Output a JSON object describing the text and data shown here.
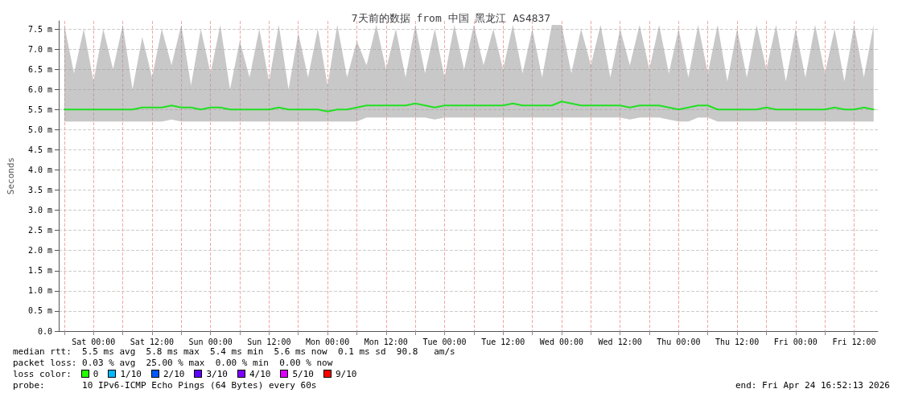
{
  "chart_data": {
    "type": "line",
    "title": "7天前的数据 from 中国 黑龙江 AS4837",
    "ylabel": "Seconds",
    "x": [
      "2026-04-17T18:00",
      "2026-04-17T20:00",
      "2026-04-17T22:00",
      "2026-04-18T00:00",
      "2026-04-18T02:00",
      "2026-04-18T04:00",
      "2026-04-18T06:00",
      "2026-04-18T08:00",
      "2026-04-18T10:00",
      "2026-04-18T12:00",
      "2026-04-18T14:00",
      "2026-04-18T16:00",
      "2026-04-18T18:00",
      "2026-04-18T20:00",
      "2026-04-18T22:00",
      "2026-04-19T00:00",
      "2026-04-19T02:00",
      "2026-04-19T04:00",
      "2026-04-19T06:00",
      "2026-04-19T08:00",
      "2026-04-19T10:00",
      "2026-04-19T12:00",
      "2026-04-19T14:00",
      "2026-04-19T16:00",
      "2026-04-19T18:00",
      "2026-04-19T20:00",
      "2026-04-19T22:00",
      "2026-04-20T00:00",
      "2026-04-20T02:00",
      "2026-04-20T04:00",
      "2026-04-20T06:00",
      "2026-04-20T08:00",
      "2026-04-20T10:00",
      "2026-04-20T12:00",
      "2026-04-20T14:00",
      "2026-04-20T16:00",
      "2026-04-20T18:00",
      "2026-04-20T20:00",
      "2026-04-20T22:00",
      "2026-04-21T00:00",
      "2026-04-21T02:00",
      "2026-04-21T04:00",
      "2026-04-21T06:00",
      "2026-04-21T08:00",
      "2026-04-21T10:00",
      "2026-04-21T12:00",
      "2026-04-21T14:00",
      "2026-04-21T16:00",
      "2026-04-21T18:00",
      "2026-04-21T20:00",
      "2026-04-21T22:00",
      "2026-04-22T00:00",
      "2026-04-22T02:00",
      "2026-04-22T04:00",
      "2026-04-22T06:00",
      "2026-04-22T08:00",
      "2026-04-22T10:00",
      "2026-04-22T12:00",
      "2026-04-22T14:00",
      "2026-04-22T16:00",
      "2026-04-22T18:00",
      "2026-04-22T20:00",
      "2026-04-22T22:00",
      "2026-04-23T00:00",
      "2026-04-23T02:00",
      "2026-04-23T04:00",
      "2026-04-23T06:00",
      "2026-04-23T08:00",
      "2026-04-23T10:00",
      "2026-04-23T12:00",
      "2026-04-23T14:00",
      "2026-04-23T16:00",
      "2026-04-23T18:00",
      "2026-04-23T20:00",
      "2026-04-23T22:00",
      "2026-04-24T00:00",
      "2026-04-24T02:00",
      "2026-04-24T04:00",
      "2026-04-24T06:00",
      "2026-04-24T08:00",
      "2026-04-24T10:00",
      "2026-04-24T12:00",
      "2026-04-24T14:00",
      "2026-04-24T16:00"
    ],
    "series": [
      {
        "color": "#22e022",
        "values": [
          5.5,
          5.5,
          5.5,
          5.5,
          5.5,
          5.5,
          5.5,
          5.5,
          5.55,
          5.55,
          5.55,
          5.6,
          5.55,
          5.55,
          5.5,
          5.55,
          5.55,
          5.5,
          5.5,
          5.5,
          5.5,
          5.5,
          5.55,
          5.5,
          5.5,
          5.5,
          5.5,
          5.45,
          5.5,
          5.5,
          5.55,
          5.6,
          5.6,
          5.6,
          5.6,
          5.6,
          5.65,
          5.6,
          5.55,
          5.6,
          5.6,
          5.6,
          5.6,
          5.6,
          5.6,
          5.6,
          5.65,
          5.6,
          5.6,
          5.6,
          5.6,
          5.7,
          5.65,
          5.6,
          5.6,
          5.6,
          5.6,
          5.6,
          5.55,
          5.6,
          5.6,
          5.6,
          5.55,
          5.5,
          5.55,
          5.6,
          5.6,
          5.5,
          5.5,
          5.5,
          5.5,
          5.5,
          5.55,
          5.5,
          5.5,
          5.5,
          5.5,
          5.5,
          5.5,
          5.55,
          5.5,
          5.5,
          5.55,
          5.5
        ],
        "lower": [
          5.2,
          5.2,
          5.2,
          5.2,
          5.2,
          5.2,
          5.2,
          5.2,
          5.2,
          5.2,
          5.2,
          5.25,
          5.2,
          5.2,
          5.2,
          5.2,
          5.2,
          5.2,
          5.2,
          5.2,
          5.2,
          5.2,
          5.2,
          5.2,
          5.2,
          5.2,
          5.2,
          5.2,
          5.2,
          5.2,
          5.2,
          5.3,
          5.3,
          5.3,
          5.3,
          5.3,
          5.3,
          5.3,
          5.25,
          5.3,
          5.3,
          5.3,
          5.3,
          5.3,
          5.3,
          5.3,
          5.3,
          5.3,
          5.3,
          5.3,
          5.3,
          5.3,
          5.3,
          5.3,
          5.3,
          5.3,
          5.3,
          5.3,
          5.25,
          5.3,
          5.3,
          5.3,
          5.25,
          5.2,
          5.2,
          5.3,
          5.3,
          5.2,
          5.2,
          5.2,
          5.2,
          5.2,
          5.2,
          5.2,
          5.2,
          5.2,
          5.2,
          5.2,
          5.2,
          5.2,
          5.2,
          5.2,
          5.2,
          5.2
        ],
        "upper": [
          7.6,
          6.4,
          7.5,
          6.2,
          7.5,
          6.5,
          7.6,
          6.0,
          7.3,
          6.3,
          7.5,
          6.6,
          7.6,
          6.1,
          7.5,
          6.4,
          7.6,
          6.0,
          7.2,
          6.3,
          7.5,
          6.2,
          7.6,
          6.0,
          7.4,
          6.3,
          7.5,
          6.1,
          7.6,
          6.3,
          7.2,
          6.6,
          7.6,
          6.5,
          7.5,
          6.3,
          7.6,
          6.4,
          7.5,
          6.3,
          7.6,
          6.5,
          7.6,
          6.6,
          7.5,
          6.5,
          7.6,
          6.4,
          7.5,
          6.3,
          7.6,
          7.6,
          6.4,
          7.5,
          6.6,
          7.6,
          6.3,
          7.5,
          6.6,
          7.6,
          6.5,
          7.6,
          6.4,
          7.5,
          6.3,
          7.6,
          6.4,
          7.6,
          6.2,
          7.5,
          6.3,
          7.6,
          6.5,
          7.6,
          6.2,
          7.5,
          6.3,
          7.6,
          6.4,
          7.5,
          6.2,
          7.6,
          6.3,
          7.6
        ]
      }
    ],
    "xlim": [
      "2026-04-17T16:52",
      "2026-04-24T16:52"
    ],
    "xticks": [
      {
        "value": "2026-04-17T18:00",
        "label": null
      },
      {
        "value": "2026-04-18T00:00",
        "label": "Sat 00:00"
      },
      {
        "value": "2026-04-18T06:00",
        "label": null
      },
      {
        "value": "2026-04-18T12:00",
        "label": "Sat 12:00"
      },
      {
        "value": "2026-04-18T18:00",
        "label": null
      },
      {
        "value": "2026-04-19T00:00",
        "label": "Sun 00:00"
      },
      {
        "value": "2026-04-19T06:00",
        "label": null
      },
      {
        "value": "2026-04-19T12:00",
        "label": "Sun 12:00"
      },
      {
        "value": "2026-04-19T18:00",
        "label": null
      },
      {
        "value": "2026-04-20T00:00",
        "label": "Mon 00:00"
      },
      {
        "value": "2026-04-20T06:00",
        "label": null
      },
      {
        "value": "2026-04-20T12:00",
        "label": "Mon 12:00"
      },
      {
        "value": "2026-04-20T18:00",
        "label": null
      },
      {
        "value": "2026-04-21T00:00",
        "label": "Tue 00:00"
      },
      {
        "value": "2026-04-21T06:00",
        "label": null
      },
      {
        "value": "2026-04-21T12:00",
        "label": "Tue 12:00"
      },
      {
        "value": "2026-04-21T18:00",
        "label": null
      },
      {
        "value": "2026-04-22T00:00",
        "label": "Wed 00:00"
      },
      {
        "value": "2026-04-22T06:00",
        "label": null
      },
      {
        "value": "2026-04-22T12:00",
        "label": "Wed 12:00"
      },
      {
        "value": "2026-04-22T18:00",
        "label": null
      },
      {
        "value": "2026-04-23T00:00",
        "label": "Thu 00:00"
      },
      {
        "value": "2026-04-23T06:00",
        "label": null
      },
      {
        "value": "2026-04-23T12:00",
        "label": "Thu 12:00"
      },
      {
        "value": "2026-04-23T18:00",
        "label": null
      },
      {
        "value": "2026-04-24T00:00",
        "label": "Fri 00:00"
      },
      {
        "value": "2026-04-24T06:00",
        "label": null
      },
      {
        "value": "2026-04-24T12:00",
        "label": "Fri 12:00"
      }
    ],
    "ylim": [
      0,
      7.7
    ],
    "yticks": [
      {
        "value": 0,
        "label": "0.0"
      },
      {
        "value": 0.5,
        "label": "0.5 m"
      },
      {
        "value": 1,
        "label": "1.0 m"
      },
      {
        "value": 1.5,
        "label": "1.5 m"
      },
      {
        "value": 2,
        "label": "2.0 m"
      },
      {
        "value": 2.5,
        "label": "2.5 m"
      },
      {
        "value": 3,
        "label": "3.0 m"
      },
      {
        "value": 3.5,
        "label": "3.5 m"
      },
      {
        "value": 4,
        "label": "4.0 m"
      },
      {
        "value": 4.5,
        "label": "4.5 m"
      },
      {
        "value": 5,
        "label": "5.0 m"
      },
      {
        "value": 5.5,
        "label": "5.5 m"
      },
      {
        "value": 6,
        "label": "6.0 m"
      },
      {
        "value": 6.5,
        "label": "6.5 m"
      },
      {
        "value": 7,
        "label": "7.0 m"
      },
      {
        "value": 7.5,
        "label": "7.5 m"
      }
    ],
    "grid": true,
    "annotations": [
      "median rtt:  5.5 ms avg  5.8 ms max  5.4 ms min  5.6 ms now  0.1 ms sd  90.8   am/s",
      "packet loss: 0.03 % avg  25.00 % max  0.00 % min  0.00 % now",
      "loss color:",
      "0",
      "1/10",
      "2/10",
      "3/10",
      "4/10",
      "5/10",
      "9/10",
      "probe:       10 IPv6-ICMP Echo Pings (64 Bytes) every 60s",
      "end: Fri Apr 24 16:52:13 2026"
    ]
  }
}
